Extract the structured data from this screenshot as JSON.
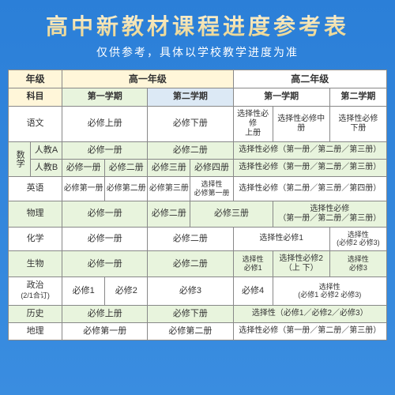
{
  "header": {
    "title": "高中新教材课程进度参考表",
    "subtitle": "仅供参考，具体以学校教学进度为准"
  },
  "colors": {
    "bg_yellow": "#fff6d9",
    "bg_green": "#e8f4dd",
    "bg_blue": "#dce9f5",
    "bg_white": "#ffffff",
    "border": "#888888",
    "page_bg_top": "#2b7fd8",
    "title_grad_top": "#fff3d6",
    "title_grad_bot": "#e8d28a"
  },
  "cols": {
    "grade": "年级",
    "g1": "高一年级",
    "g2": "高二年级",
    "subject": "科目",
    "s1": "第一学期",
    "s2": "第二学期"
  },
  "math_label": "数学",
  "rows": {
    "yuwen": {
      "subj": "语文",
      "c1": "必修上册",
      "c2": "必修下册",
      "c3": "选择性必修\n上册",
      "c4": "选择性必修中册",
      "c5": "选择性必修\n下册"
    },
    "renA": {
      "subj": "人教A",
      "c1": "必修一册",
      "c2": "必修二册",
      "c3": "选择性必修（第一册／第二册／第三册）"
    },
    "renB": {
      "subj": "人教B",
      "c1": "必修一册",
      "c2": "必修二册",
      "c3": "必修三册",
      "c4": "必修四册",
      "c5": "选择性必修（第一册／第二册／第三册）"
    },
    "eng": {
      "subj": "英语",
      "c1": "必修第一册",
      "c2": "必修第二册",
      "c3": "必修第三册",
      "c4": "选择性\n必修第一册",
      "c5": "选择性必修（第二册／第三册／第四册）"
    },
    "phy": {
      "subj": "物理",
      "c1": "必修一册",
      "c2": "必修二册",
      "c3": "必修三册",
      "c4": "选择性必修\n（第一册／第二册／第三册）"
    },
    "chem": {
      "subj": "化学",
      "c1": "必修一册",
      "c2": "必修二册",
      "c3": "选择性必修1",
      "c4": "选择性\n(必修2 必修3)"
    },
    "bio": {
      "subj": "生物",
      "c1": "必修一册",
      "c2": "必修二册",
      "c3": "选择性\n必修1",
      "c4": "选择性必修2（上 下）",
      "c5": "选择性\n必修3"
    },
    "pol": {
      "subj": "政治",
      "sub": "(2/1合订)",
      "c1": "必修1",
      "c2": "必修2",
      "c3": "必修3",
      "c4": "必修4",
      "c5": "选择性\n(必修1 必修2 必修3)"
    },
    "hist": {
      "subj": "历史",
      "c1": "必修上册",
      "c2": "必修下册",
      "c3": "选择性（必修1／必修2／必修3）"
    },
    "geo": {
      "subj": "地理",
      "c1": "必修第一册",
      "c2": "必修第二册",
      "c3": "选择性必修（第一册／第二册／第三册）"
    }
  }
}
